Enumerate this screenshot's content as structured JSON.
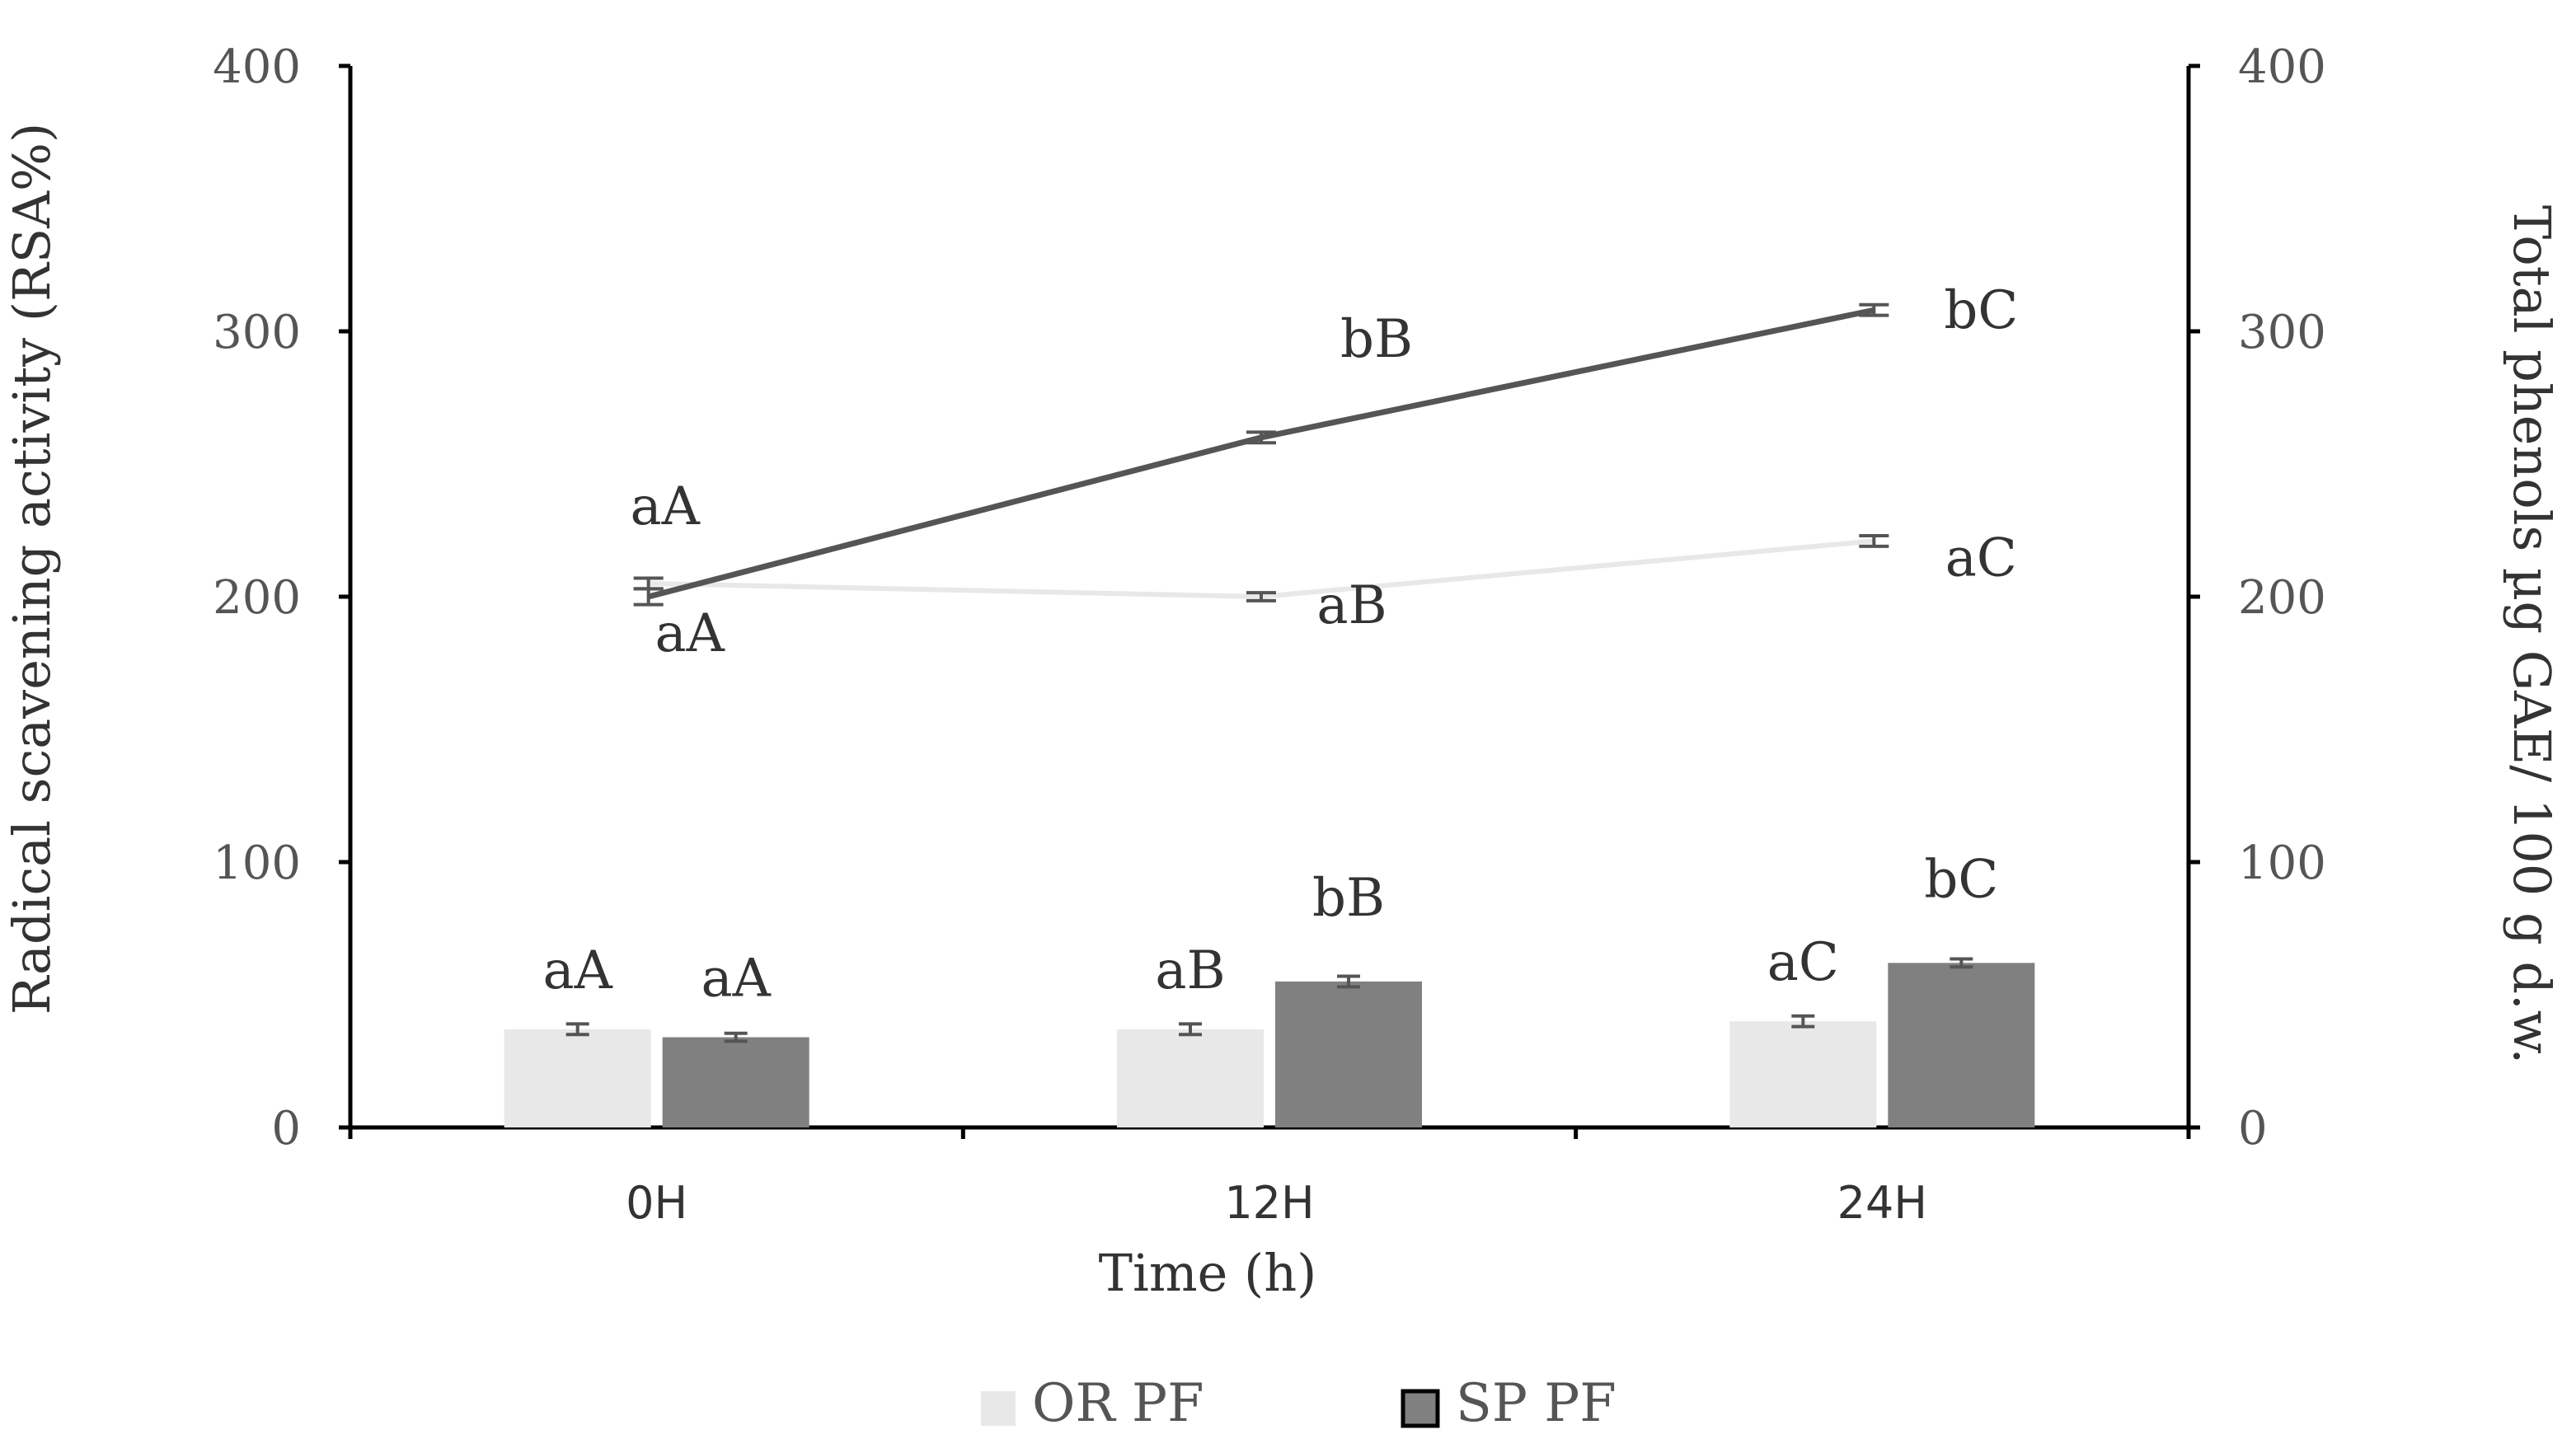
{
  "chart_data": {
    "type": "bar",
    "xlabel": "Time (h)",
    "ylabel": "Radical scavening activity (RSA%)",
    "y2label": "Total phenols µg GAE/ 100 g d.w.",
    "ylim": [
      0,
      400
    ],
    "y2lim": [
      0,
      400
    ],
    "yticks": [
      "0",
      "100",
      "200",
      "300",
      "400"
    ],
    "y2ticks": [
      "0",
      "100",
      "200",
      "300",
      "400"
    ],
    "categories": [
      "0H",
      "12H",
      "24H"
    ],
    "bar_series": [
      {
        "name": "OR PF",
        "color": "#e8e8e8",
        "values": [
          37,
          37,
          40
        ],
        "errors": [
          2,
          2,
          2
        ],
        "labels": [
          "aA",
          "aB",
          "aC"
        ]
      },
      {
        "name": "SP PF",
        "color": "#808080",
        "values": [
          34,
          55,
          62
        ],
        "errors": [
          1.5,
          2,
          1.5
        ],
        "labels": [
          "aA",
          "bB",
          "bC"
        ]
      }
    ],
    "line_series": [
      {
        "color": "#e8e8e8",
        "values": [
          205,
          200,
          221
        ],
        "errors": [
          2,
          1.5,
          2
        ],
        "labels": [
          "aA",
          "aB",
          "aC"
        ]
      },
      {
        "color": "#555555",
        "values": [
          200,
          260,
          308
        ],
        "errors": [
          3,
          2,
          2
        ],
        "labels": [
          "aA",
          "bB",
          "bC"
        ]
      }
    ],
    "legend": {
      "position": "bottom",
      "entries": [
        "OR PF",
        "SP PF"
      ]
    },
    "grid": false
  }
}
